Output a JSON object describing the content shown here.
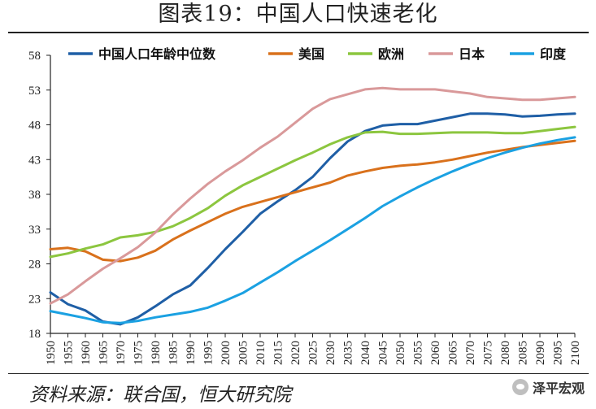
{
  "header": {
    "title": "图表19：中国人口快速老化"
  },
  "footer": {
    "source": "资料来源：联合国，恒大研究院",
    "watermark": "泽平宏观",
    "watermark_icon": "wechat-icon"
  },
  "chart_data": {
    "type": "line",
    "title": "图表19：中国人口快速老化",
    "xlabel": "",
    "ylabel": "",
    "ylim": [
      18,
      58
    ],
    "yticks": [
      18,
      23,
      28,
      33,
      38,
      43,
      48,
      53,
      58
    ],
    "grid": false,
    "legend_position": "top",
    "x": [
      1950,
      1955,
      1960,
      1965,
      1970,
      1975,
      1980,
      1985,
      1990,
      1995,
      2000,
      2005,
      2010,
      2015,
      2020,
      2025,
      2030,
      2035,
      2040,
      2045,
      2050,
      2055,
      2060,
      2065,
      2070,
      2075,
      2080,
      2085,
      2090,
      2095,
      2100
    ],
    "series": [
      {
        "name": "中国人口年龄中位数",
        "color": "#1f5fa6",
        "values": [
          23.9,
          22.2,
          21.3,
          19.7,
          19.3,
          20.3,
          21.9,
          23.6,
          24.9,
          27.4,
          30.1,
          32.6,
          35.2,
          37.0,
          38.6,
          40.5,
          43.2,
          45.6,
          47.1,
          47.9,
          48.1,
          48.1,
          48.6,
          49.1,
          49.6,
          49.6,
          49.5,
          49.2,
          49.3,
          49.5,
          49.6
        ]
      },
      {
        "name": "美国",
        "color": "#d9711c",
        "values": [
          30.1,
          30.3,
          29.8,
          28.6,
          28.4,
          28.9,
          29.9,
          31.5,
          32.8,
          34.0,
          35.2,
          36.2,
          36.9,
          37.6,
          38.3,
          39.0,
          39.7,
          40.7,
          41.3,
          41.8,
          42.1,
          42.3,
          42.6,
          43.0,
          43.5,
          44.0,
          44.4,
          44.8,
          45.1,
          45.4,
          45.7
        ]
      },
      {
        "name": "欧洲",
        "color": "#8cc63f",
        "values": [
          29.0,
          29.5,
          30.2,
          30.8,
          31.8,
          32.1,
          32.6,
          33.4,
          34.6,
          36.0,
          37.8,
          39.3,
          40.5,
          41.7,
          42.9,
          44.0,
          45.2,
          46.2,
          46.9,
          47.0,
          46.7,
          46.7,
          46.8,
          46.9,
          46.9,
          46.9,
          46.8,
          46.8,
          47.1,
          47.4,
          47.7
        ]
      },
      {
        "name": "日本",
        "color": "#d9999a",
        "values": [
          22.3,
          23.6,
          25.5,
          27.3,
          28.8,
          30.4,
          32.5,
          35.1,
          37.4,
          39.5,
          41.3,
          42.9,
          44.7,
          46.3,
          48.3,
          50.3,
          51.7,
          52.4,
          53.1,
          53.3,
          53.1,
          53.1,
          53.1,
          52.8,
          52.5,
          52.0,
          51.8,
          51.6,
          51.6,
          51.8,
          52.0
        ]
      },
      {
        "name": "印度",
        "color": "#1ba1e2",
        "values": [
          21.2,
          20.7,
          20.2,
          19.6,
          19.5,
          19.8,
          20.3,
          20.7,
          21.1,
          21.7,
          22.7,
          23.8,
          25.3,
          26.8,
          28.4,
          29.9,
          31.4,
          33.0,
          34.6,
          36.3,
          37.7,
          39.0,
          40.2,
          41.3,
          42.3,
          43.2,
          44.0,
          44.7,
          45.3,
          45.8,
          46.2
        ]
      }
    ]
  }
}
